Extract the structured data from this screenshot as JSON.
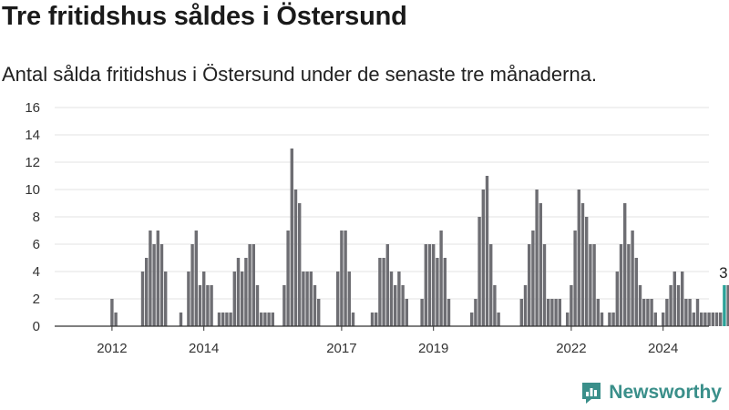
{
  "header": {
    "title": "Tre fritidshus såldes i Östersund",
    "subtitle": "Antal sålda fritidshus i Östersund under de senaste tre månaderna."
  },
  "brand": {
    "name": "Newsworthy",
    "color": "#3a8f8a",
    "icon": "newsworthy-logo-icon"
  },
  "colors": {
    "bar": "#6e6e73",
    "highlight": "#2aa198",
    "grid": "#e3e3e3",
    "axis": "#333333"
  },
  "chart_data": {
    "type": "bar",
    "title": "Tre fritidshus såldes i Östersund",
    "subtitle": "Antal sålda fritidshus i Östersund under de senaste tre månaderna.",
    "ylim": [
      0,
      16
    ],
    "yticks": [
      0,
      2,
      4,
      6,
      8,
      10,
      12,
      14,
      16
    ],
    "xticks": [
      {
        "label": "2012",
        "index": 7
      },
      {
        "label": "2014",
        "index": 31
      },
      {
        "label": "2017",
        "index": 67
      },
      {
        "label": "2019",
        "index": 91
      },
      {
        "label": "2022",
        "index": 127
      },
      {
        "label": "2024",
        "index": 151
      }
    ],
    "start": "2011-01",
    "grid": true,
    "legend": "none",
    "values": [
      0,
      0,
      0,
      0,
      0,
      0,
      0,
      2,
      1,
      0,
      0,
      0,
      0,
      0,
      0,
      4,
      5,
      7,
      6,
      7,
      6,
      4,
      0,
      0,
      0,
      1,
      0,
      4,
      6,
      7,
      3,
      4,
      3,
      3,
      0,
      1,
      1,
      1,
      1,
      4,
      5,
      4,
      5,
      6,
      6,
      3,
      1,
      1,
      1,
      1,
      0,
      0,
      3,
      7,
      13,
      10,
      9,
      4,
      4,
      4,
      3,
      2,
      0,
      0,
      0,
      0,
      4,
      7,
      7,
      4,
      1,
      0,
      0,
      0,
      0,
      1,
      1,
      5,
      5,
      6,
      4,
      3,
      4,
      3,
      2,
      0,
      0,
      0,
      2,
      6,
      6,
      6,
      5,
      7,
      5,
      2,
      0,
      0,
      0,
      0,
      0,
      1,
      2,
      8,
      10,
      11,
      6,
      3,
      1,
      0,
      0,
      0,
      0,
      0,
      2,
      3,
      6,
      7,
      10,
      9,
      6,
      2,
      2,
      2,
      2,
      0,
      1,
      3,
      7,
      10,
      9,
      8,
      6,
      6,
      2,
      1,
      0,
      1,
      1,
      4,
      6,
      9,
      6,
      7,
      5,
      3,
      2,
      2,
      2,
      1,
      0,
      1,
      2,
      3,
      4,
      3,
      4,
      2,
      2,
      1,
      2,
      1,
      1,
      1,
      1,
      1,
      1,
      3,
      3
    ],
    "highlight": {
      "index": 167,
      "value": 3,
      "label": "3"
    }
  }
}
